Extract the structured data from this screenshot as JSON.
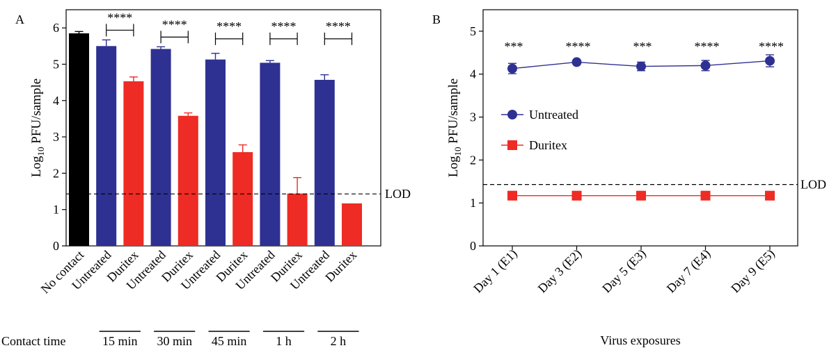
{
  "chart_data": [
    {
      "panel_label": "A",
      "type": "bar",
      "ylabel_main": "Log",
      "ylabel_sub": "10",
      "ylabel_rest": " PFU/sample",
      "ylim": [
        0,
        6.5
      ],
      "yticks": [
        "0",
        "1",
        "2",
        "3",
        "4",
        "5",
        "6"
      ],
      "categories": [
        "No contact",
        "Untreated",
        "Duritex",
        "Untreated",
        "Duritex",
        "Untreated",
        "Duritex",
        "Untreated",
        "Duritex",
        "Untreated",
        "Duritex"
      ],
      "values": [
        5.85,
        5.5,
        4.53,
        5.42,
        3.58,
        5.13,
        2.58,
        5.04,
        1.44,
        4.57,
        1.17
      ],
      "errors": [
        0.05,
        0.17,
        0.12,
        0.06,
        0.08,
        0.17,
        0.2,
        0.06,
        0.44,
        0.14,
        0
      ],
      "colors": [
        "#000000",
        "#2e3192",
        "#ee2b24",
        "#2e3192",
        "#ee2b24",
        "#2e3192",
        "#ee2b24",
        "#2e3192",
        "#ee2b24",
        "#2e3192",
        "#ee2b24"
      ],
      "lod_value": 1.43,
      "lod_label": "LOD",
      "significance": [
        {
          "pair": [
            1,
            2
          ],
          "label": "****"
        },
        {
          "pair": [
            3,
            4
          ],
          "label": "****"
        },
        {
          "pair": [
            5,
            6
          ],
          "label": "****"
        },
        {
          "pair": [
            7,
            8
          ],
          "label": "****"
        },
        {
          "pair": [
            9,
            10
          ],
          "label": "****"
        }
      ],
      "contact_time_label": "Contact time",
      "contact_times": [
        {
          "pair": [
            1,
            2
          ],
          "label": "15 min"
        },
        {
          "pair": [
            3,
            4
          ],
          "label": "30 min"
        },
        {
          "pair": [
            5,
            6
          ],
          "label": "45 min"
        },
        {
          "pair": [
            7,
            8
          ],
          "label": "1 h"
        },
        {
          "pair": [
            9,
            10
          ],
          "label": "2 h"
        }
      ]
    },
    {
      "panel_label": "B",
      "type": "line",
      "ylabel_main": "Log",
      "ylabel_sub": "10",
      "ylabel_rest": " PFU/sample",
      "xlabel": "Virus exposures",
      "ylim": [
        0,
        5.5
      ],
      "yticks": [
        "0",
        "1",
        "2",
        "3",
        "4",
        "5"
      ],
      "categories": [
        "Day 1 (E1)",
        "Day 3 (E2)",
        "Day 5 (E3)",
        "Day 7 (E4)",
        "Day 9 (E5)"
      ],
      "series": [
        {
          "name": "Untreated",
          "values": [
            4.13,
            4.28,
            4.18,
            4.2,
            4.31
          ],
          "errors": [
            0.12,
            0.03,
            0.1,
            0.12,
            0.14
          ],
          "color": "#2e3192",
          "marker": "circle"
        },
        {
          "name": "Duritex",
          "values": [
            1.17,
            1.17,
            1.17,
            1.17,
            1.17
          ],
          "errors": [
            0,
            0,
            0,
            0,
            0
          ],
          "color": "#ee2b24",
          "marker": "square"
        }
      ],
      "significance": [
        "***",
        "****",
        "***",
        "****",
        "****"
      ],
      "lod_value": 1.43,
      "lod_label": "LOD"
    }
  ]
}
